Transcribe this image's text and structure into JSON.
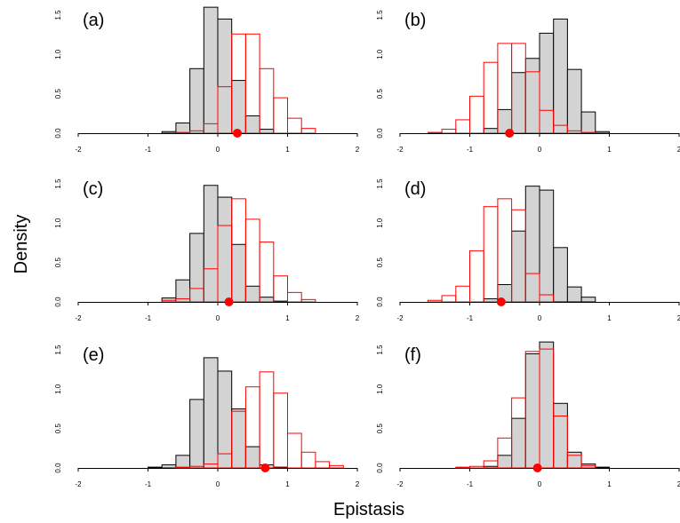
{
  "figure": {
    "ylabel": "Density",
    "xlabel": "Epistasis",
    "colors": {
      "observed_fill": "#d3d3d3",
      "observed_stroke": "#000000",
      "null_stroke": "#ff0000",
      "point": "#ff0000",
      "axis": "#000000"
    }
  },
  "chart_data": [
    {
      "type": "bar",
      "panel_label": "(a)",
      "xlim": [
        -2,
        2
      ],
      "ylim": [
        0,
        1.5
      ],
      "xticks": [
        -2,
        -1,
        0,
        1,
        2
      ],
      "yticks": [
        0.0,
        0.5,
        1.0,
        1.5
      ],
      "bin_width": 0.2,
      "series": [
        {
          "style": "gray-filled",
          "bins": [
            -0.8,
            -0.6,
            -0.4,
            -0.2,
            0.0,
            0.2,
            0.4,
            0.6
          ],
          "values": [
            0.02,
            0.13,
            0.82,
            1.6,
            1.45,
            0.67,
            0.22,
            0.05
          ]
        },
        {
          "style": "red-outline",
          "bins": [
            -0.6,
            -0.4,
            -0.2,
            0.0,
            0.2,
            0.4,
            0.6,
            0.8,
            1.0,
            1.2
          ],
          "values": [
            0.01,
            0.03,
            0.12,
            0.59,
            1.26,
            1.26,
            0.82,
            0.45,
            0.19,
            0.06
          ]
        }
      ],
      "point": {
        "x": 0.28,
        "y": 0
      }
    },
    {
      "type": "bar",
      "panel_label": "(b)",
      "xlim": [
        -2,
        2
      ],
      "ylim": [
        0,
        1.5
      ],
      "xticks": [
        -2,
        -1,
        0,
        1,
        2
      ],
      "yticks": [
        0.0,
        0.5,
        1.0,
        1.5
      ],
      "bin_width": 0.2,
      "series": [
        {
          "style": "gray-filled",
          "bins": [
            -0.8,
            -0.6,
            -0.4,
            -0.2,
            0.0,
            0.2,
            0.4,
            0.6,
            0.8
          ],
          "values": [
            0.06,
            0.3,
            0.77,
            0.95,
            1.27,
            1.45,
            0.81,
            0.27,
            0.02
          ]
        },
        {
          "style": "red-outline",
          "bins": [
            -1.6,
            -1.4,
            -1.2,
            -1.0,
            -0.8,
            -0.6,
            -0.4,
            -0.2,
            0.0,
            0.2,
            0.4,
            0.6
          ],
          "values": [
            0.01,
            0.05,
            0.17,
            0.47,
            0.9,
            1.14,
            1.14,
            0.78,
            0.29,
            0.1,
            0.03,
            0.01
          ]
        }
      ],
      "point": {
        "x": -0.43,
        "y": 0
      }
    },
    {
      "type": "bar",
      "panel_label": "(c)",
      "xlim": [
        -2,
        2
      ],
      "ylim": [
        0,
        1.5
      ],
      "xticks": [
        -2,
        -1,
        0,
        1,
        2
      ],
      "yticks": [
        0.0,
        0.5,
        1.0,
        1.5
      ],
      "bin_width": 0.2,
      "series": [
        {
          "style": "gray-filled",
          "bins": [
            -0.8,
            -0.6,
            -0.4,
            -0.2,
            0.0,
            0.2,
            0.4,
            0.6,
            0.8
          ],
          "values": [
            0.05,
            0.28,
            0.87,
            1.48,
            1.33,
            0.73,
            0.2,
            0.06,
            0.01
          ]
        },
        {
          "style": "red-outline",
          "bins": [
            -0.8,
            -0.6,
            -0.4,
            -0.2,
            0.0,
            0.2,
            0.4,
            0.6,
            0.8,
            1.0,
            1.2
          ],
          "values": [
            0.02,
            0.04,
            0.17,
            0.42,
            0.97,
            1.31,
            1.05,
            0.76,
            0.33,
            0.12,
            0.03
          ]
        }
      ],
      "point": {
        "x": 0.16,
        "y": 0
      }
    },
    {
      "type": "bar",
      "panel_label": "(d)",
      "xlim": [
        -2,
        2
      ],
      "ylim": [
        0,
        1.5
      ],
      "xticks": [
        -2,
        -1,
        0,
        1,
        2
      ],
      "yticks": [
        0.0,
        0.5,
        1.0,
        1.5
      ],
      "bin_width": 0.2,
      "series": [
        {
          "style": "gray-filled",
          "bins": [
            -0.8,
            -0.6,
            -0.4,
            -0.2,
            0.0,
            0.2,
            0.4,
            0.6
          ],
          "values": [
            0.04,
            0.22,
            0.9,
            1.47,
            1.42,
            0.69,
            0.19,
            0.06
          ]
        },
        {
          "style": "red-outline",
          "bins": [
            -1.6,
            -1.4,
            -1.2,
            -1.0,
            -0.8,
            -0.6,
            -0.4,
            -0.2,
            0.0
          ],
          "values": [
            0.02,
            0.08,
            0.2,
            0.65,
            1.21,
            1.31,
            1.17,
            0.36,
            0.09
          ]
        }
      ],
      "point": {
        "x": -0.55,
        "y": 0
      }
    },
    {
      "type": "bar",
      "panel_label": "(e)",
      "xlim": [
        -2,
        2
      ],
      "ylim": [
        0,
        1.5
      ],
      "xticks": [
        -2,
        -1,
        0,
        1,
        2
      ],
      "yticks": [
        0.0,
        0.5,
        1.0,
        1.5
      ],
      "bin_width": 0.2,
      "series": [
        {
          "style": "gray-filled",
          "bins": [
            -1.0,
            -0.8,
            -0.6,
            -0.4,
            -0.2,
            0.0,
            0.2,
            0.4,
            0.6,
            0.8
          ],
          "values": [
            0.01,
            0.04,
            0.16,
            0.87,
            1.4,
            1.23,
            0.75,
            0.27,
            0.04,
            0.01
          ]
        },
        {
          "style": "red-outline",
          "bins": [
            -0.6,
            -0.4,
            -0.2,
            0.0,
            0.2,
            0.4,
            0.6,
            0.8,
            1.0,
            1.2,
            1.4,
            1.6
          ],
          "values": [
            0.01,
            0.02,
            0.05,
            0.18,
            0.72,
            1.03,
            1.22,
            0.95,
            0.44,
            0.2,
            0.08,
            0.03
          ]
        }
      ],
      "point": {
        "x": 0.68,
        "y": 0
      }
    },
    {
      "type": "bar",
      "panel_label": "(f)",
      "xlim": [
        -2,
        2
      ],
      "ylim": [
        0,
        1.5
      ],
      "xticks": [
        -2,
        -1,
        0,
        1,
        2
      ],
      "yticks": [
        0.0,
        0.5,
        1.0,
        1.5
      ],
      "bin_width": 0.2,
      "series": [
        {
          "style": "gray-filled",
          "bins": [
            -0.8,
            -0.6,
            -0.4,
            -0.2,
            0.0,
            0.2,
            0.4,
            0.6,
            0.8
          ],
          "values": [
            0.02,
            0.16,
            0.63,
            1.45,
            1.6,
            0.82,
            0.2,
            0.05,
            0.01
          ]
        },
        {
          "style": "red-outline",
          "bins": [
            -1.2,
            -1.0,
            -0.8,
            -0.6,
            -0.4,
            -0.2,
            0.0,
            0.2,
            0.4,
            0.6
          ],
          "values": [
            0.01,
            0.02,
            0.09,
            0.38,
            0.89,
            1.48,
            1.51,
            0.66,
            0.16,
            0.03
          ]
        }
      ],
      "point": {
        "x": -0.03,
        "y": 0
      }
    }
  ]
}
